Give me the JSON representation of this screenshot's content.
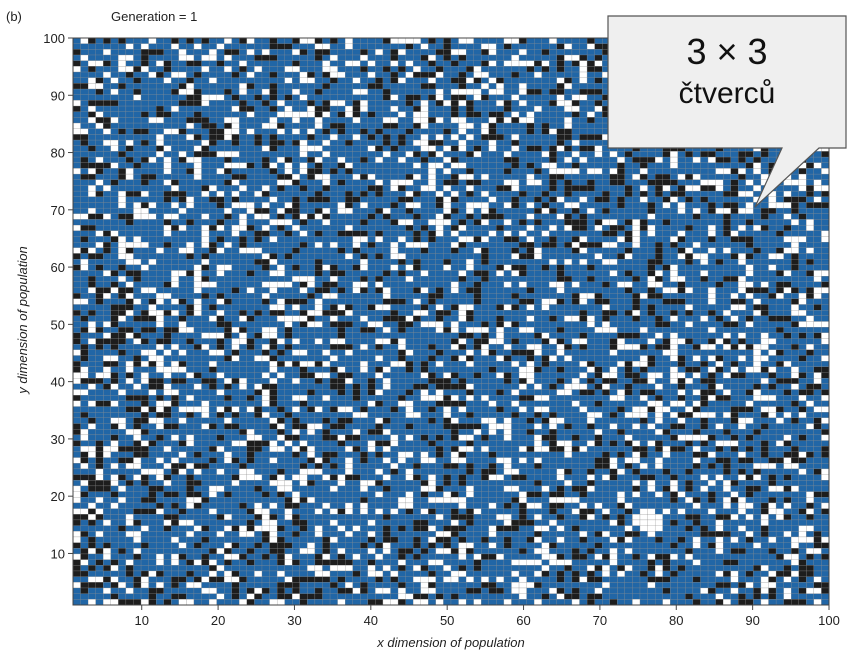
{
  "panel_label": "(b)",
  "header": "Generation = 1",
  "callout": {
    "line1": "3 × 3",
    "line2": "čtverců"
  },
  "colors": {
    "blue": "#2166a6",
    "black": "#1d1d1d",
    "white": "#ffffff",
    "grid": "#8a8a8a"
  },
  "chart_data": {
    "type": "heatmap",
    "title": "Generation = 1",
    "xlabel": "x dimension of population",
    "ylabel": "y dimension of population",
    "xlim": [
      1,
      100
    ],
    "ylim": [
      1,
      100
    ],
    "xticks": [
      10,
      20,
      30,
      40,
      50,
      60,
      70,
      80,
      90,
      100
    ],
    "yticks": [
      10,
      20,
      30,
      40,
      50,
      60,
      70,
      80,
      90,
      100
    ],
    "grid_size": [
      100,
      100
    ],
    "categories": [
      "blue",
      "black",
      "white"
    ],
    "category_proportions": [
      0.6,
      0.2,
      0.2
    ],
    "grid": false,
    "legend": "none"
  }
}
